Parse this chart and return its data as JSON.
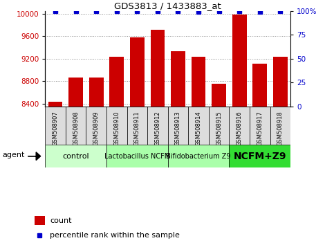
{
  "title": "GDS3813 / 1433883_at",
  "samples": [
    "GSM508907",
    "GSM508908",
    "GSM508909",
    "GSM508910",
    "GSM508911",
    "GSM508912",
    "GSM508913",
    "GSM508914",
    "GSM508915",
    "GSM508916",
    "GSM508917",
    "GSM508918"
  ],
  "counts": [
    8430,
    8870,
    8870,
    9240,
    9580,
    9720,
    9340,
    9240,
    8760,
    9990,
    9110,
    9240
  ],
  "percentile_y": [
    100,
    100,
    100,
    100,
    100,
    100,
    100,
    99,
    100,
    100,
    99,
    100
  ],
  "bar_color": "#CC0000",
  "percentile_color": "#0000CC",
  "ylim_left": [
    8350,
    10050
  ],
  "ylim_right": [
    0,
    100
  ],
  "yticks_left": [
    8400,
    8800,
    9200,
    9600,
    10000
  ],
  "yticks_right": [
    0,
    25,
    50,
    75,
    100
  ],
  "groups": [
    {
      "label": "control",
      "start": 0,
      "end": 3,
      "color": "#ccffcc"
    },
    {
      "label": "Lactobacillus NCFM",
      "start": 3,
      "end": 6,
      "color": "#aaffaa"
    },
    {
      "label": "Bifidobacterium Z9",
      "start": 6,
      "end": 9,
      "color": "#aaffaa"
    },
    {
      "label": "NCFM+Z9",
      "start": 9,
      "end": 12,
      "color": "#33dd33"
    }
  ],
  "agent_label": "agent",
  "legend_count_label": "count",
  "legend_percentile_label": "percentile rank within the sample",
  "background_color": "#ffffff",
  "grid_color": "#888888",
  "plot_bg": "#ffffff",
  "sample_box_color": "#dddddd"
}
